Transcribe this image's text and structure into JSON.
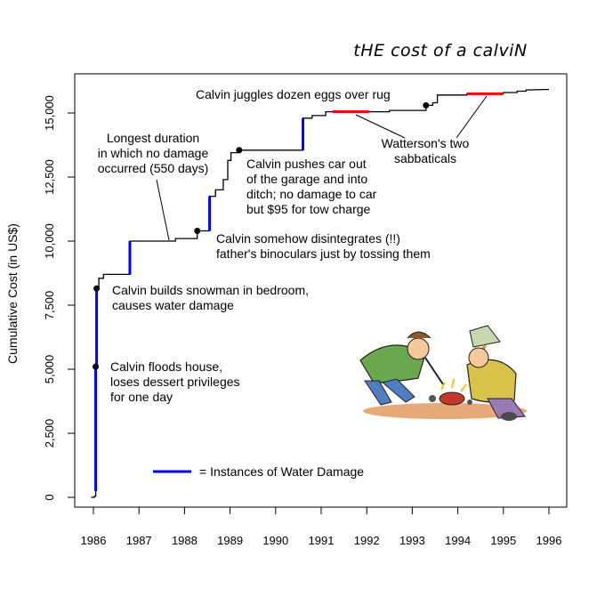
{
  "chart_data": {
    "type": "line",
    "title": "tHE cost of a calviN",
    "ylabel": "Cumulative Cost (in US$)",
    "xlabel": "",
    "xlim": [
      1985.9,
      1996.1
    ],
    "ylim": [
      -200,
      16300
    ],
    "xticks": [
      1986,
      1987,
      1988,
      1989,
      1990,
      1991,
      1992,
      1993,
      1994,
      1995,
      1996
    ],
    "xtick_labels": [
      "1986",
      "1987",
      "1988",
      "1989",
      "1990",
      "1991",
      "1992",
      "1993",
      "1994",
      "1995",
      "1996"
    ],
    "yticks": [
      0,
      2500,
      5000,
      7500,
      10000,
      12500,
      15000
    ],
    "ytick_labels": [
      "0",
      "2,500",
      "5,000",
      "7,500",
      "10,000",
      "12,500",
      "15,000"
    ],
    "series": [
      {
        "type": "step",
        "color": "#000000",
        "points": [
          [
            1985.95,
            0
          ],
          [
            1986.02,
            0
          ],
          [
            1986.02,
            50
          ],
          [
            1986.05,
            50
          ],
          [
            1986.05,
            250
          ],
          [
            1986.06,
            250
          ],
          [
            1986.06,
            5100
          ],
          [
            1986.07,
            5100
          ],
          [
            1986.07,
            8150
          ],
          [
            1986.12,
            8150
          ],
          [
            1986.12,
            8550
          ],
          [
            1986.22,
            8550
          ],
          [
            1986.22,
            8700
          ],
          [
            1986.8,
            8700
          ],
          [
            1986.8,
            10000
          ],
          [
            1987.8,
            10000
          ],
          [
            1987.8,
            10100
          ],
          [
            1988.28,
            10100
          ],
          [
            1988.28,
            10400
          ],
          [
            1988.55,
            10400
          ],
          [
            1988.55,
            11750
          ],
          [
            1988.68,
            11750
          ],
          [
            1988.68,
            12000
          ],
          [
            1988.85,
            12000
          ],
          [
            1988.85,
            12400
          ],
          [
            1988.95,
            12400
          ],
          [
            1988.95,
            13150
          ],
          [
            1989.02,
            13150
          ],
          [
            1989.02,
            13450
          ],
          [
            1989.2,
            13450
          ],
          [
            1989.2,
            13550
          ],
          [
            1990.6,
            13550
          ],
          [
            1990.6,
            14800
          ],
          [
            1990.8,
            14800
          ],
          [
            1990.8,
            14900
          ],
          [
            1991.1,
            14900
          ],
          [
            1991.1,
            15050
          ],
          [
            1992.5,
            15050
          ],
          [
            1992.5,
            15100
          ],
          [
            1993.3,
            15100
          ],
          [
            1993.3,
            15300
          ],
          [
            1993.45,
            15300
          ],
          [
            1993.45,
            15400
          ],
          [
            1993.55,
            15400
          ],
          [
            1993.55,
            15700
          ],
          [
            1994.2,
            15700
          ],
          [
            1994.2,
            15750
          ],
          [
            1995.0,
            15750
          ],
          [
            1995.0,
            15800
          ],
          [
            1995.3,
            15800
          ],
          [
            1995.3,
            15850
          ],
          [
            1995.5,
            15850
          ],
          [
            1995.5,
            15900
          ],
          [
            1996.0,
            15920
          ]
        ]
      }
    ],
    "water_damage_segments": [
      {
        "x": 1986.05,
        "y0": 250,
        "y1": 5100
      },
      {
        "x": 1986.07,
        "y0": 5100,
        "y1": 8150
      },
      {
        "x": 1986.8,
        "y0": 8700,
        "y1": 10000
      },
      {
        "x": 1988.55,
        "y0": 10400,
        "y1": 11750
      },
      {
        "x": 1990.6,
        "y0": 13550,
        "y1": 14800
      }
    ],
    "sabbaticals": [
      {
        "x0": 1991.25,
        "x1": 1992.05,
        "y": 15050
      },
      {
        "x0": 1994.2,
        "x1": 1995.0,
        "y": 15750
      }
    ],
    "events": [
      {
        "x": 1986.05,
        "y": 5100,
        "lines": [
          "Calvin floods house,",
          "loses dessert privileges",
          "for one day"
        ]
      },
      {
        "x": 1986.07,
        "y": 8150,
        "lines": [
          "Calvin builds snowman in bedroom,",
          "causes water damage"
        ]
      },
      {
        "x": 1988.28,
        "y": 10400,
        "lines": [
          "Calvin somehow disintegrates (!!)",
          "father's binoculars just by tossing them"
        ]
      },
      {
        "x": 1989.2,
        "y": 13550,
        "lines": [
          "Calvin pushes car out",
          "of the garage and into",
          "ditch; no damage to car",
          "but $95 for tow charge"
        ]
      },
      {
        "x": 1993.3,
        "y": 15300,
        "lines": [
          "Calvin juggles dozen eggs over rug"
        ]
      }
    ],
    "callouts": [
      {
        "lines": [
          "Longest duration",
          "in which no damage",
          "occurred (550 days)"
        ]
      },
      {
        "lines": [
          "Watterson's two",
          "sabbaticals"
        ]
      }
    ],
    "legend": {
      "label": "= Instances of Water Damage",
      "color": "#0000ff"
    },
    "colors": {
      "line": "#000000",
      "water": "#0000ff",
      "sabbatical": "#ff0000"
    },
    "illustration": "calvin-and-father-cartoon"
  }
}
